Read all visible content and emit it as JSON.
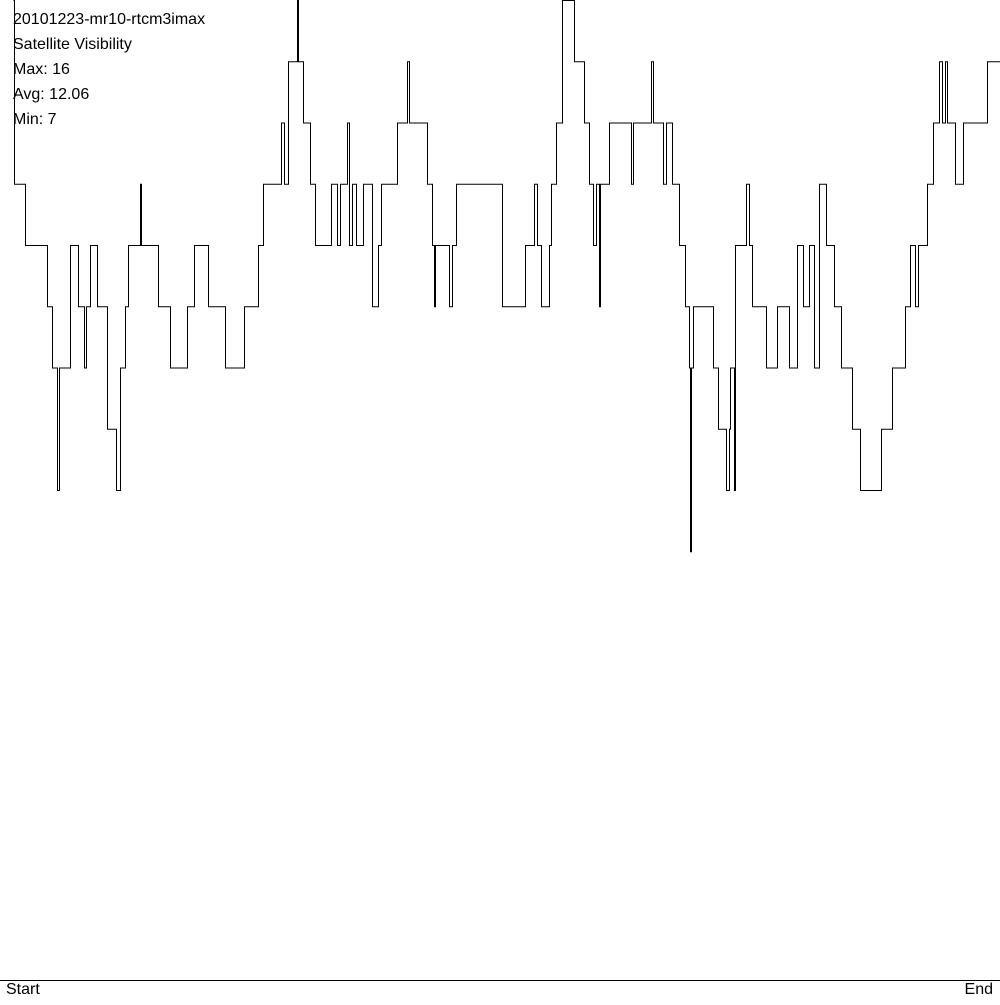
{
  "chart_data": {
    "type": "line",
    "title": "20101223-mr10-rtcm3imax",
    "subtitle": "Satellite Visibility",
    "annotations": [
      "Max: 16",
      "Avg: 12.06",
      "Min: 7"
    ],
    "start_label": "Start",
    "end_label": "End",
    "xlim": [
      0,
      1000
    ],
    "ylim": [
      0,
      16
    ],
    "step": true,
    "series": [
      {
        "name": "Satellite Visibility",
        "color": "#000000",
        "x": [
          13,
          14,
          25,
          47,
          52,
          57,
          59,
          68,
          70,
          78,
          84,
          86,
          90,
          97,
          107,
          116,
          120,
          125,
          128,
          140,
          141,
          158,
          170,
          187,
          194,
          208,
          225,
          244,
          258,
          263,
          281,
          284,
          288,
          297,
          298,
          303,
          310,
          315,
          331,
          337,
          340,
          347,
          349,
          352,
          356,
          363,
          372,
          378,
          381,
          397,
          407,
          409,
          427,
          432,
          434,
          435,
          449,
          452,
          456,
          502,
          525,
          534,
          537,
          541,
          549,
          551,
          556,
          562,
          574,
          584,
          589,
          593,
          596,
          599,
          600,
          609,
          631,
          633,
          651,
          653,
          663,
          666,
          672,
          679,
          685,
          689,
          690,
          691,
          693,
          713,
          718,
          726,
          729,
          730,
          734,
          735,
          746,
          749,
          752,
          766,
          777,
          789,
          797,
          803,
          809,
          814,
          819,
          826,
          834,
          841,
          852,
          860,
          881,
          892,
          905,
          910,
          915,
          918,
          927,
          933,
          939,
          942,
          945,
          947,
          955,
          963,
          987,
          1000
        ],
        "values": [
          16,
          13,
          12,
          11,
          10,
          8,
          10,
          10,
          12,
          11,
          10,
          11,
          12,
          11,
          9,
          8,
          10,
          11,
          12,
          13,
          12,
          11,
          10,
          11,
          12,
          11,
          10,
          11,
          12,
          13,
          14,
          13,
          15,
          16,
          15,
          14,
          13,
          12,
          13,
          12,
          13,
          14,
          12,
          13,
          12,
          13,
          11,
          12,
          13,
          14,
          15,
          14,
          13,
          12,
          11,
          12,
          11,
          12,
          13,
          11,
          12,
          13,
          12,
          11,
          12,
          13,
          14,
          16,
          15,
          14,
          13,
          12,
          13,
          11,
          13,
          14,
          13,
          14,
          15,
          14,
          13,
          14,
          13,
          12,
          11,
          10,
          7,
          10,
          11,
          10,
          9,
          8,
          9,
          10,
          8,
          12,
          13,
          12,
          11,
          10,
          11,
          10,
          12,
          11,
          12,
          10,
          13,
          12,
          11,
          10,
          9,
          8,
          9,
          10,
          11,
          12,
          11,
          12,
          13,
          14,
          15,
          14,
          15,
          14,
          13,
          14,
          15,
          15
        ]
      }
    ]
  }
}
